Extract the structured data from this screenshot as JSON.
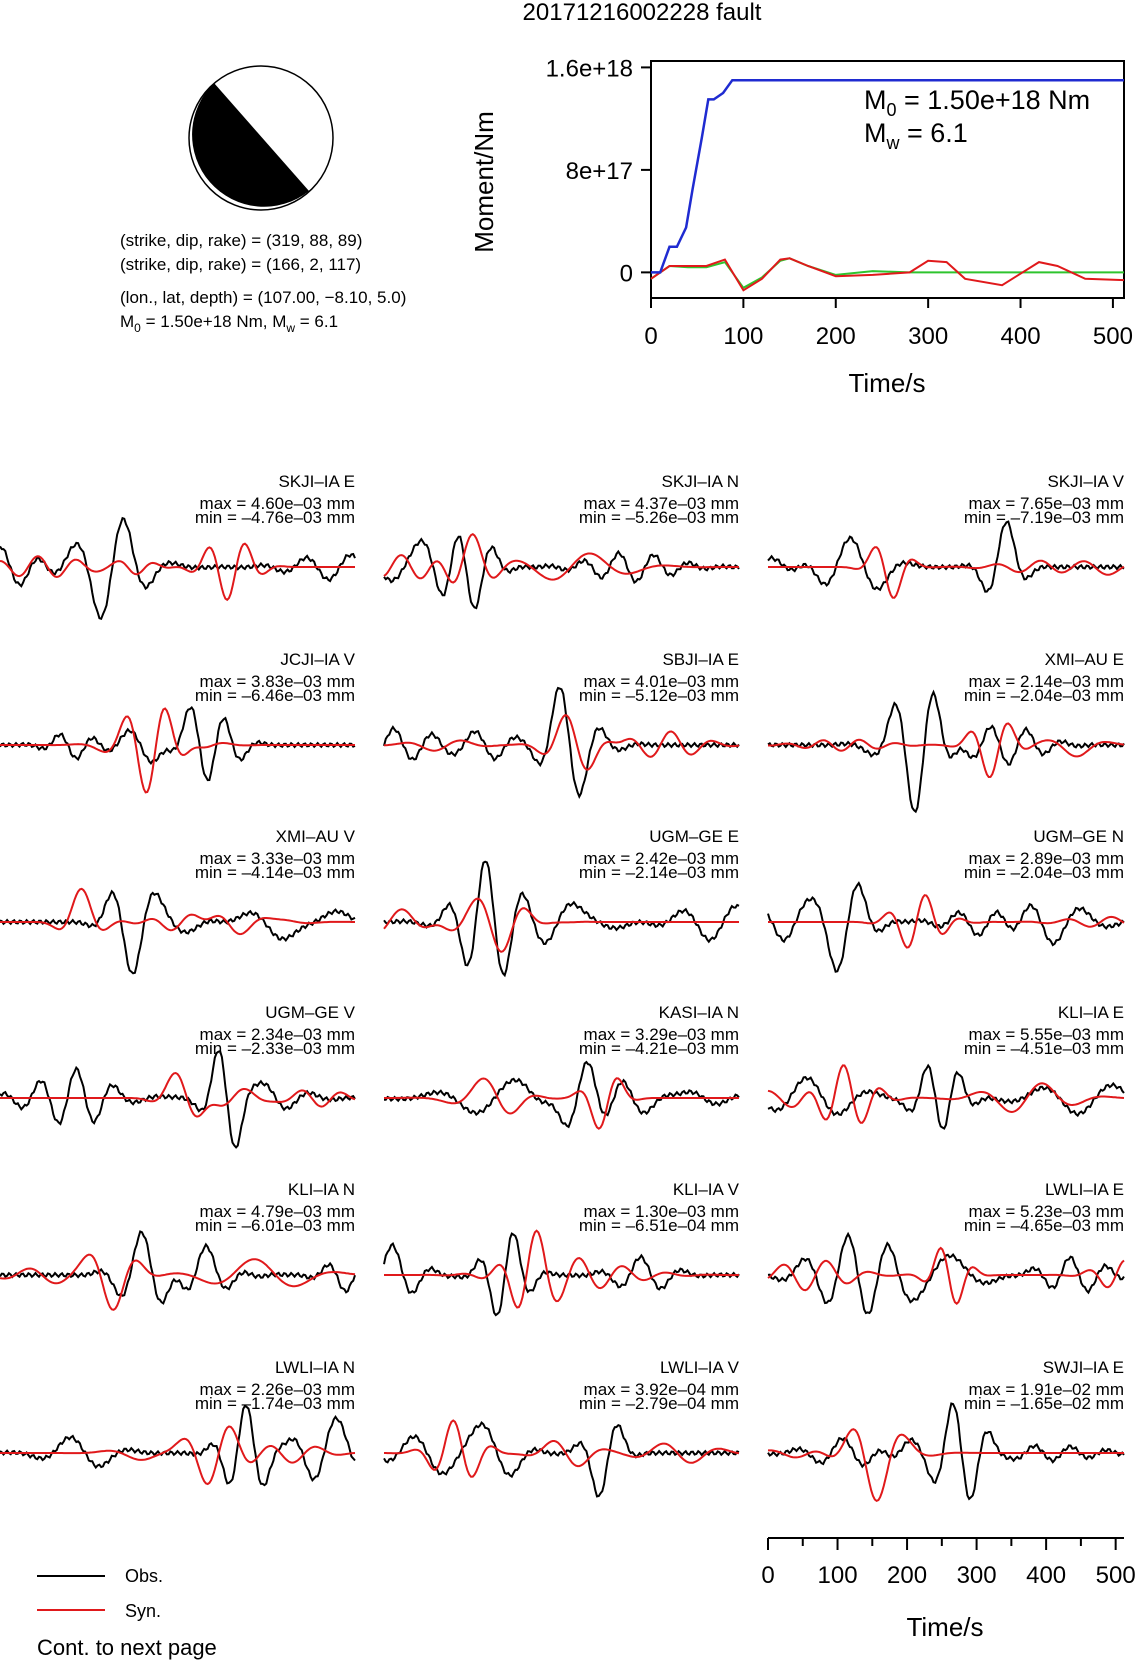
{
  "title": "20171216002228 fault",
  "mechanism": {
    "line1": "(strike, dip, rake) = (319, 88, 89)",
    "line2": "(strike, dip, rake) = (166, 2, 117)",
    "line3": "(lon., lat, depth) = (107.00, −8.10, 5.0)",
    "line4_prefix": "M",
    "line4_sub": "0",
    "line4_rest": " = 1.50e+18 Nm, M",
    "line4_sub2": "w",
    "line4_end": " = 6.1"
  },
  "moment_panel": {
    "ylabel": "Moment/Nm",
    "xlabel": "Time/s",
    "yticks": [
      "1.6e+18",
      "8e+17",
      "0"
    ],
    "xticks": [
      "0",
      "100",
      "200",
      "300",
      "400",
      "500"
    ],
    "m0_prefix": "M",
    "m0_sub": "0",
    "m0_value": " = 1.50e+18 Nm",
    "mw_prefix": "M",
    "mw_sub": "w",
    "mw_value": " = 6.1"
  },
  "legend": {
    "obs": "Obs.",
    "syn": "Syn.",
    "cont": "Cont. to next page"
  },
  "colors": {
    "obs": "#000000",
    "syn": "#e0191b",
    "moment": "#1f2bd1",
    "rate_red": "#e0191b",
    "rate_green": "#2ec42e"
  },
  "chart_data": [
    {
      "type": "line",
      "panel": "moment-release",
      "xlabel": "Time/s",
      "ylabel": "Moment/Nm",
      "xlim": [
        0,
        512
      ],
      "ylim": [
        -200000000000000000,
        1650000000000000000
      ],
      "series": [
        {
          "color": "#1f2bd1",
          "x": [
            0,
            10,
            20,
            28,
            38,
            45,
            55,
            62,
            68,
            78,
            88,
            92,
            100,
            200,
            300,
            400,
            512
          ],
          "y": [
            0,
            0,
            2e+17,
            2e+17,
            3.5e+17,
            6.5e+17,
            1.05e+18,
            1.35e+18,
            1.35e+18,
            1.4e+18,
            1.5e+18,
            1.5e+18,
            1.5e+18,
            1.5e+18,
            1.5e+18,
            1.5e+18,
            1.5e+18
          ]
        },
        {
          "color": "#e0191b",
          "x": [
            0,
            20,
            40,
            60,
            80,
            100,
            120,
            140,
            150,
            170,
            200,
            240,
            280,
            300,
            320,
            340,
            380,
            420,
            440,
            470,
            512
          ],
          "y": [
            -5e+16,
            5e+16,
            5e+16,
            5e+16,
            1e+17,
            -1.4e+17,
            -5e+16,
            1e+17,
            1.1e+17,
            5e+16,
            -3e+16,
            -2e+16,
            0,
            9e+16,
            8e+16,
            -5e+16,
            -1e+17,
            8e+16,
            5e+16,
            -5e+16,
            -6e+16
          ]
        },
        {
          "color": "#2ec42e",
          "x": [
            0,
            20,
            40,
            60,
            80,
            100,
            120,
            140,
            150,
            170,
            200,
            240,
            280,
            320,
            360,
            400,
            450,
            512
          ],
          "y": [
            -5e+16,
            5e+16,
            4e+16,
            4e+16,
            8e+16,
            -1.2e+17,
            -4e+16,
            9e+16,
            1.1e+17,
            5e+16,
            -2e+16,
            1e+16,
            0,
            0,
            0,
            0,
            0,
            0
          ]
        }
      ]
    },
    {
      "type": "line",
      "panel": "waveforms",
      "xlabel": "Time/s",
      "xticks": [
        "0",
        "100",
        "200",
        "300",
        "400",
        "500"
      ],
      "xlim": [
        0,
        512
      ],
      "traces": [
        {
          "label": "SKJI–IA E",
          "max": "max = 4.60e–03 mm",
          "min": "min = –4.76e–03 mm"
        },
        {
          "label": "SKJI–IA N",
          "max": "max = 4.37e–03 mm",
          "min": "min = –5.26e–03 mm"
        },
        {
          "label": "SKJI–IA V",
          "max": "max = 7.65e–03 mm",
          "min": "min = –7.19e–03 mm"
        },
        {
          "label": "JCJI–IA V",
          "max": "max = 3.83e–03 mm",
          "min": "min = –6.46e–03 mm"
        },
        {
          "label": "SBJI–IA E",
          "max": "max = 4.01e–03 mm",
          "min": "min = –5.12e–03 mm"
        },
        {
          "label": "XMI–AU E",
          "max": "max = 2.14e–03 mm",
          "min": "min = –2.04e–03 mm"
        },
        {
          "label": "XMI–AU V",
          "max": "max = 3.33e–03 mm",
          "min": "min = –4.14e–03 mm"
        },
        {
          "label": "UGM–GE E",
          "max": "max = 2.42e–03 mm",
          "min": "min = –2.14e–03 mm"
        },
        {
          "label": "UGM–GE N",
          "max": "max = 2.89e–03 mm",
          "min": "min = –2.04e–03 mm"
        },
        {
          "label": "UGM–GE V",
          "max": "max = 2.34e–03 mm",
          "min": "min = –2.33e–03 mm"
        },
        {
          "label": "KASI–IA N",
          "max": "max = 3.29e–03 mm",
          "min": "min = –4.21e–03 mm"
        },
        {
          "label": "KLI–IA E",
          "max": "max = 5.55e–03 mm",
          "min": "min = –4.51e–03 mm"
        },
        {
          "label": "KLI–IA N",
          "max": "max = 4.79e–03 mm",
          "min": "min = –6.01e–03 mm"
        },
        {
          "label": "KLI–IA V",
          "max": "max = 1.30e–03 mm",
          "min": "min = –6.51e–04 mm"
        },
        {
          "label": "LWLI–IA E",
          "max": "max = 5.23e–03 mm",
          "min": "min = –4.65e–03 mm"
        },
        {
          "label": "LWLI–IA N",
          "max": "max = 2.26e–03 mm",
          "min": "min = –1.74e–03 mm"
        },
        {
          "label": "LWLI–IA V",
          "max": "max = 3.92e–04 mm",
          "min": "min = –2.79e–04 mm"
        },
        {
          "label": "SWJI–IA E",
          "max": "max = 1.91e–02 mm",
          "min": "min = –1.65e–02 mm"
        }
      ]
    }
  ]
}
